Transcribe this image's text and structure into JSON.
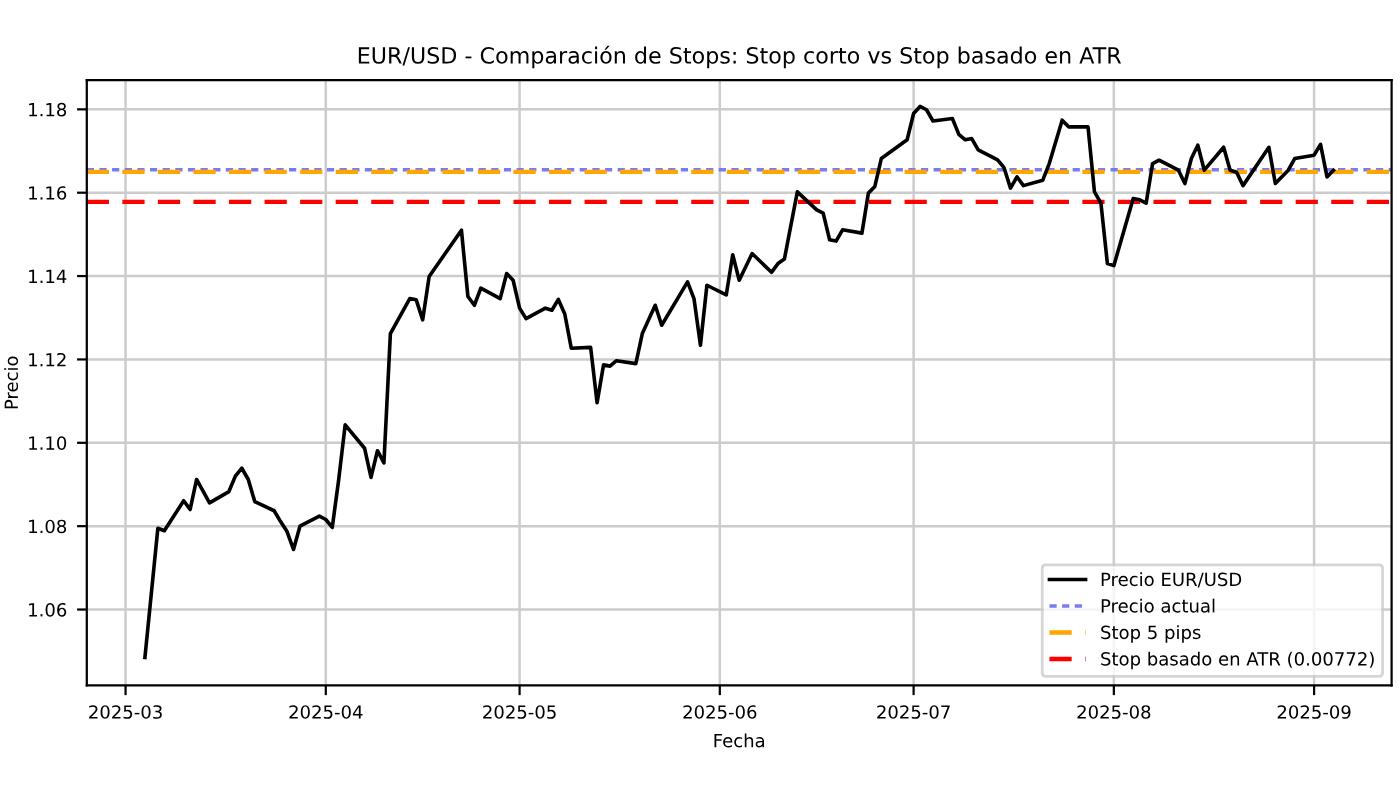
{
  "chart_data": {
    "type": "line",
    "title": "EUR/USD - Comparación de Stops: Stop corto vs Stop basado en ATR",
    "xlabel": "Fecha",
    "ylabel": "Precio",
    "x": [
      "2025-03-04",
      "2025-03-06",
      "2025-03-07",
      "2025-03-10",
      "2025-03-11",
      "2025-03-12",
      "2025-03-14",
      "2025-03-17",
      "2025-03-18",
      "2025-03-19",
      "2025-03-20",
      "2025-03-21",
      "2025-03-24",
      "2025-03-25",
      "2025-03-26",
      "2025-03-27",
      "2025-03-28",
      "2025-03-31",
      "2025-04-01",
      "2025-04-02",
      "2025-04-03",
      "2025-04-04",
      "2025-04-07",
      "2025-04-08",
      "2025-04-09",
      "2025-04-10",
      "2025-04-11",
      "2025-04-14",
      "2025-04-15",
      "2025-04-16",
      "2025-04-17",
      "2025-04-22",
      "2025-04-23",
      "2025-04-24",
      "2025-04-25",
      "2025-04-28",
      "2025-04-29",
      "2025-04-30",
      "2025-05-01",
      "2025-05-02",
      "2025-05-05",
      "2025-05-06",
      "2025-05-07",
      "2025-05-08",
      "2025-05-09",
      "2025-05-12",
      "2025-05-13",
      "2025-05-14",
      "2025-05-15",
      "2025-05-16",
      "2025-05-19",
      "2025-05-20",
      "2025-05-22",
      "2025-05-23",
      "2025-05-27",
      "2025-05-28",
      "2025-05-29",
      "2025-05-30",
      "2025-06-02",
      "2025-06-03",
      "2025-06-04",
      "2025-06-06",
      "2025-06-09",
      "2025-06-10",
      "2025-06-11",
      "2025-06-13",
      "2025-06-16",
      "2025-06-17",
      "2025-06-18",
      "2025-06-19",
      "2025-06-20",
      "2025-06-23",
      "2025-06-24",
      "2025-06-25",
      "2025-06-26",
      "2025-06-30",
      "2025-07-01",
      "2025-07-02",
      "2025-07-03",
      "2025-07-04",
      "2025-07-07",
      "2025-07-08",
      "2025-07-09",
      "2025-07-10",
      "2025-07-11",
      "2025-07-14",
      "2025-07-15",
      "2025-07-16",
      "2025-07-17",
      "2025-07-18",
      "2025-07-21",
      "2025-07-22",
      "2025-07-24",
      "2025-07-25",
      "2025-07-28",
      "2025-07-29",
      "2025-07-30",
      "2025-07-31",
      "2025-08-01",
      "2025-08-04",
      "2025-08-05",
      "2025-08-06",
      "2025-08-07",
      "2025-08-08",
      "2025-08-11",
      "2025-08-12",
      "2025-08-13",
      "2025-08-14",
      "2025-08-15",
      "2025-08-18",
      "2025-08-19",
      "2025-08-20",
      "2025-08-21",
      "2025-08-25",
      "2025-08-26",
      "2025-08-28",
      "2025-08-29",
      "2025-09-01",
      "2025-09-02",
      "2025-09-03",
      "2025-09-04"
    ],
    "series": [
      {
        "name": "Precio EUR/USD",
        "color": "#000000",
        "values": [
          1.0485,
          1.0795,
          1.0789,
          1.0861,
          1.084,
          1.0912,
          1.0856,
          1.0883,
          1.092,
          1.0939,
          1.0912,
          1.0859,
          1.0837,
          1.0811,
          1.0787,
          1.0744,
          1.08,
          1.0824,
          1.0816,
          1.0797,
          1.0912,
          1.1043,
          1.0987,
          1.0917,
          1.0981,
          1.0952,
          1.1262,
          1.1346,
          1.1343,
          1.1295,
          1.1399,
          1.151,
          1.1351,
          1.133,
          1.1371,
          1.1346,
          1.1406,
          1.139,
          1.1323,
          1.1298,
          1.1323,
          1.1318,
          1.1344,
          1.1309,
          1.1227,
          1.1229,
          1.1096,
          1.1187,
          1.1184,
          1.1197,
          1.119,
          1.1262,
          1.133,
          1.1282,
          1.1386,
          1.1346,
          1.1234,
          1.1378,
          1.1355,
          1.1451,
          1.139,
          1.1454,
          1.1409,
          1.143,
          1.1441,
          1.1602,
          1.1559,
          1.1551,
          1.1487,
          1.1484,
          1.1511,
          1.1503,
          1.1599,
          1.1615,
          1.1682,
          1.1727,
          1.179,
          1.1807,
          1.1799,
          1.1772,
          1.1778,
          1.174,
          1.1727,
          1.173,
          1.1703,
          1.1679,
          1.166,
          1.1611,
          1.1638,
          1.1617,
          1.163,
          1.167,
          1.1774,
          1.1758,
          1.1758,
          1.1602,
          1.1575,
          1.143,
          1.1425,
          1.1586,
          1.1583,
          1.1575,
          1.167,
          1.1678,
          1.1654,
          1.1622,
          1.1682,
          1.1714,
          1.1654,
          1.1709,
          1.1654,
          1.1649,
          1.1617,
          1.1709,
          1.1622,
          1.1654,
          1.1682,
          1.169,
          1.1716,
          1.1638,
          1.1654
        ]
      }
    ],
    "ref_lines": [
      {
        "axis": "y",
        "value": 1.1655,
        "label": "Precio actual",
        "color": "#7b7bf0",
        "line_style": "dotted"
      },
      {
        "axis": "y",
        "value": 1.165,
        "label": "Stop 5 pips",
        "color": "#ffa500",
        "line_style": "dashed"
      },
      {
        "axis": "y",
        "value": 1.1578,
        "label": "Stop basado en ATR (0.00772)",
        "color": "#ff0000",
        "line_style": "dashed"
      }
    ],
    "xlim": [
      "2025-02-23",
      "2025-09-13"
    ],
    "xticks": [
      "2025-03",
      "2025-04",
      "2025-05",
      "2025-06",
      "2025-07",
      "2025-08",
      "2025-09"
    ],
    "ylim": [
      1.0418,
      1.187
    ],
    "yticks": [
      {
        "value": 1.06,
        "label": "1.06"
      },
      {
        "value": 1.08,
        "label": "1.08"
      },
      {
        "value": 1.1,
        "label": "1.10"
      },
      {
        "value": 1.12,
        "label": "1.12"
      },
      {
        "value": 1.14,
        "label": "1.14"
      },
      {
        "value": 1.16,
        "label": "1.16"
      },
      {
        "value": 1.18,
        "label": "1.18"
      }
    ],
    "grid": true,
    "legend": "bottom right",
    "marker": "none",
    "line_style": "solid"
  }
}
